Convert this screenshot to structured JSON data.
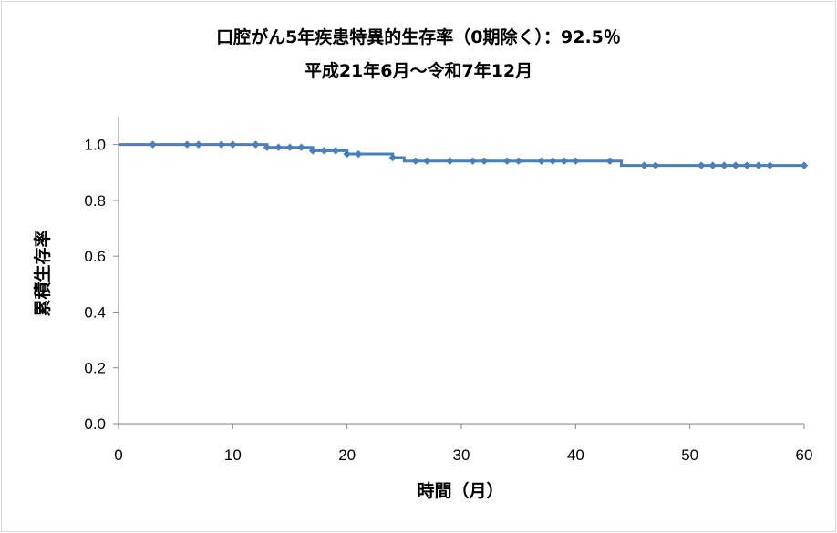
{
  "chart_data": {
    "type": "line",
    "title": "口腔がん5年疾患特異的生存率（0期除く）：92.5％",
    "subtitle": "平成21年6月～令和7年12月",
    "xlabel": "時間（月）",
    "ylabel": "累積生存率",
    "xlim": [
      0,
      60
    ],
    "ylim": [
      0.0,
      1.1
    ],
    "x_ticks": [
      "0",
      "10",
      "20",
      "30",
      "40",
      "50",
      "60"
    ],
    "y_ticks": [
      "0.0",
      "0.2",
      "0.4",
      "0.6",
      "0.8",
      "1.0"
    ],
    "x_tick_values": [
      0,
      10,
      20,
      30,
      40,
      50,
      60
    ],
    "y_tick_values": [
      0.0,
      0.2,
      0.4,
      0.6,
      0.8,
      1.0
    ],
    "grid": false,
    "line_color": "#4a7ebb",
    "series": [
      {
        "steps": [
          [
            0,
            1.0
          ],
          [
            13,
            0.99
          ],
          [
            17,
            0.978
          ],
          [
            20,
            0.966
          ],
          [
            24,
            0.953
          ],
          [
            25,
            0.941
          ],
          [
            44,
            0.925
          ],
          [
            60,
            0.925
          ]
        ],
        "censored": [
          [
            3,
            1.0
          ],
          [
            6,
            1.0
          ],
          [
            7,
            1.0
          ],
          [
            9,
            1.0
          ],
          [
            10,
            1.0
          ],
          [
            12,
            1.0
          ],
          [
            13,
            0.99
          ],
          [
            14,
            0.99
          ],
          [
            15,
            0.99
          ],
          [
            16,
            0.99
          ],
          [
            17,
            0.978
          ],
          [
            18,
            0.978
          ],
          [
            19,
            0.978
          ],
          [
            20,
            0.966
          ],
          [
            21,
            0.966
          ],
          [
            24,
            0.953
          ],
          [
            26,
            0.941
          ],
          [
            27,
            0.941
          ],
          [
            29,
            0.941
          ],
          [
            31,
            0.941
          ],
          [
            32,
            0.941
          ],
          [
            34,
            0.941
          ],
          [
            35,
            0.941
          ],
          [
            37,
            0.941
          ],
          [
            38,
            0.941
          ],
          [
            39,
            0.941
          ],
          [
            40,
            0.941
          ],
          [
            43,
            0.941
          ],
          [
            46,
            0.925
          ],
          [
            47,
            0.925
          ],
          [
            51,
            0.925
          ],
          [
            52,
            0.925
          ],
          [
            53,
            0.925
          ],
          [
            54,
            0.925
          ],
          [
            55,
            0.925
          ],
          [
            56,
            0.925
          ],
          [
            57,
            0.925
          ],
          [
            60,
            0.925
          ]
        ]
      }
    ]
  }
}
